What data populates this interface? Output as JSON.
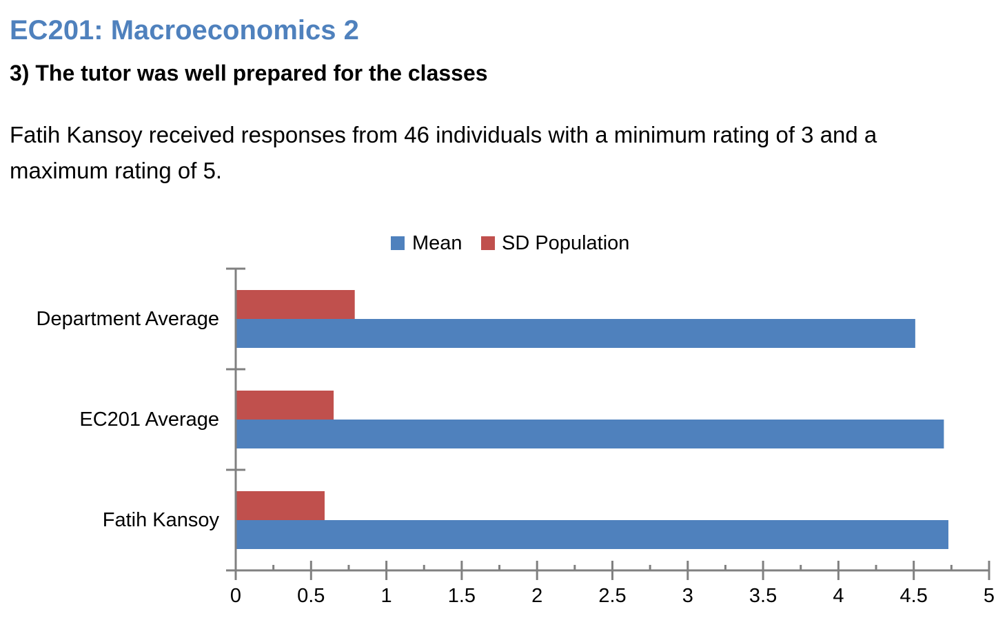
{
  "header": {
    "course_title": "EC201: Macroeconomics 2",
    "question_title": "3) The tutor was well prepared for the classes",
    "summary": "Fatih Kansoy received responses from 46 individuals with a minimum rating of 3 and a maximum rating of 5."
  },
  "chart_data": {
    "type": "bar",
    "orientation": "horizontal",
    "categories": [
      "Department Average",
      "EC201 Average",
      "Fatih Kansoy"
    ],
    "series": [
      {
        "name": "Mean",
        "color": "#4f81bd",
        "values": [
          4.51,
          4.7,
          4.73
        ]
      },
      {
        "name": "SD Population",
        "color": "#c0504d",
        "values": [
          0.79,
          0.65,
          0.59
        ]
      }
    ],
    "xlim": [
      0,
      5
    ],
    "x_ticks": [
      "0",
      "0.5",
      "1",
      "1.5",
      "2",
      "2.5",
      "3",
      "3.5",
      "4",
      "4.5",
      "5"
    ],
    "grid": false,
    "legend_position": "top"
  }
}
